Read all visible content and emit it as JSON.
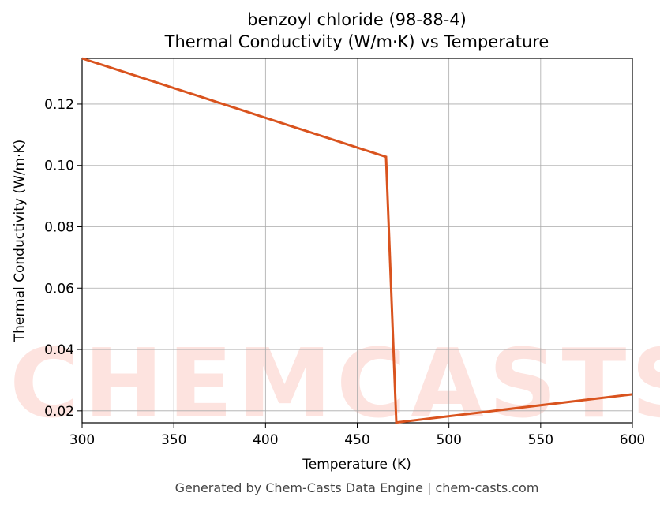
{
  "chart_data": {
    "type": "line",
    "title": "benzoyl chloride (98-88-4)",
    "subtitle": "Thermal Conductivity (W/m·K) vs Temperature",
    "x_label": "Temperature (K)",
    "y_label": "Thermal Conductivity (W/m·K)",
    "footer": "Generated by Chem-Casts Data Engine | chem-casts.com",
    "watermark": "CHEMCASTS",
    "x": [
      300,
      465.7,
      471.3,
      600
    ],
    "series": [
      {
        "name": "Thermal Conductivity",
        "color": "#d9531e",
        "values": [
          0.1349,
          0.1028,
          0.0162,
          0.0254
        ]
      }
    ],
    "xlim": [
      300,
      600
    ],
    "xticks": [
      300,
      350,
      400,
      450,
      500,
      550,
      600
    ],
    "ylim": [
      0.0161,
      0.1349
    ],
    "yticks": [
      {
        "value": 0.02,
        "label": "0.02"
      },
      {
        "value": 0.04,
        "label": "0.04"
      },
      {
        "value": 0.06,
        "label": "0.06"
      },
      {
        "value": 0.08,
        "label": "0.08"
      },
      {
        "value": 0.1,
        "label": "0.10"
      },
      {
        "value": 0.12,
        "label": "0.12"
      }
    ],
    "grid": true
  }
}
